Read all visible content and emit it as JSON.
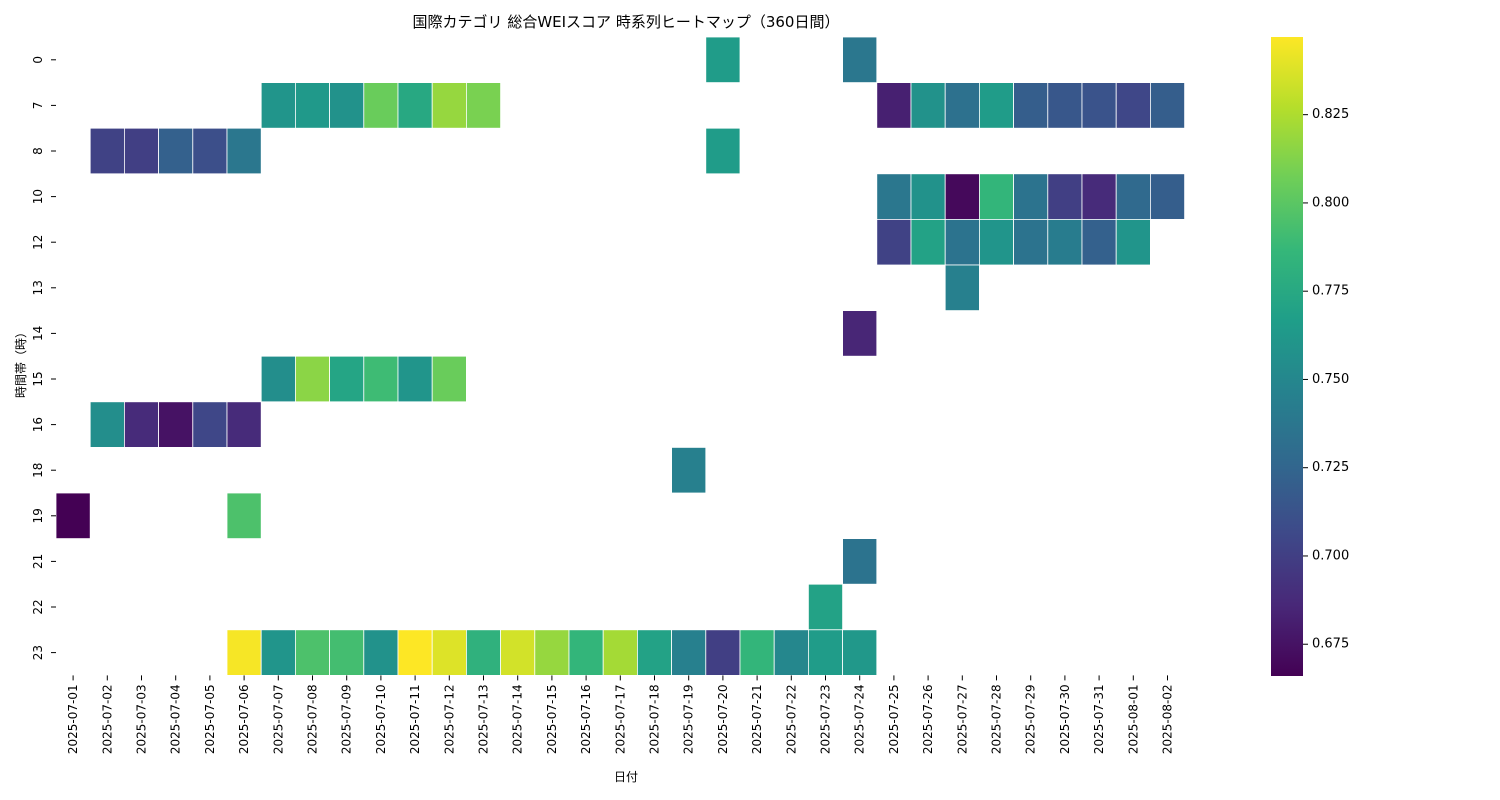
{
  "chart_data": {
    "type": "heatmap",
    "title": "国際カテゴリ 総合WEIスコア 時系列ヒートマップ（360日間）",
    "xlabel": "日付",
    "ylabel": "時間帯（時）",
    "x": [
      "2025-07-01",
      "2025-07-02",
      "2025-07-03",
      "2025-07-04",
      "2025-07-05",
      "2025-07-06",
      "2025-07-07",
      "2025-07-08",
      "2025-07-09",
      "2025-07-10",
      "2025-07-11",
      "2025-07-12",
      "2025-07-13",
      "2025-07-14",
      "2025-07-15",
      "2025-07-16",
      "2025-07-17",
      "2025-07-18",
      "2025-07-19",
      "2025-07-20",
      "2025-07-21",
      "2025-07-22",
      "2025-07-23",
      "2025-07-24",
      "2025-07-25",
      "2025-07-26",
      "2025-07-27",
      "2025-07-28",
      "2025-07-29",
      "2025-07-30",
      "2025-07-31",
      "2025-08-01",
      "2025-08-02"
    ],
    "y": [
      "0",
      "7",
      "8",
      "10",
      "12",
      "13",
      "14",
      "15",
      "16",
      "18",
      "19",
      "21",
      "22",
      "23"
    ],
    "colormap": "viridis",
    "vmin": 0.666,
    "vmax": 0.847,
    "colorbar_ticks": [
      0.675,
      0.7,
      0.725,
      0.75,
      0.775,
      0.8,
      0.825
    ],
    "colorbar_tick_labels": [
      "0.675",
      "0.700",
      "0.725",
      "0.750",
      "0.775",
      "0.800",
      "0.825"
    ],
    "cells": [
      {
        "x": "2025-07-20",
        "y": "0",
        "value": 0.765
      },
      {
        "x": "2025-07-24",
        "y": "0",
        "value": 0.738
      },
      {
        "x": "2025-07-07",
        "y": "7",
        "value": 0.76
      },
      {
        "x": "2025-07-08",
        "y": "7",
        "value": 0.763
      },
      {
        "x": "2025-07-09",
        "y": "7",
        "value": 0.758
      },
      {
        "x": "2025-07-10",
        "y": "7",
        "value": 0.805
      },
      {
        "x": "2025-07-11",
        "y": "7",
        "value": 0.775
      },
      {
        "x": "2025-07-12",
        "y": "7",
        "value": 0.818
      },
      {
        "x": "2025-07-13",
        "y": "7",
        "value": 0.81
      },
      {
        "x": "2025-07-25",
        "y": "7",
        "value": 0.682
      },
      {
        "x": "2025-07-26",
        "y": "7",
        "value": 0.758
      },
      {
        "x": "2025-07-27",
        "y": "7",
        "value": 0.733
      },
      {
        "x": "2025-07-28",
        "y": "7",
        "value": 0.765
      },
      {
        "x": "2025-07-29",
        "y": "7",
        "value": 0.72
      },
      {
        "x": "2025-07-30",
        "y": "7",
        "value": 0.715
      },
      {
        "x": "2025-07-31",
        "y": "7",
        "value": 0.713
      },
      {
        "x": "2025-08-01",
        "y": "7",
        "value": 0.705
      },
      {
        "x": "2025-08-02",
        "y": "7",
        "value": 0.72
      },
      {
        "x": "2025-07-02",
        "y": "8",
        "value": 0.702
      },
      {
        "x": "2025-07-03",
        "y": "8",
        "value": 0.7
      },
      {
        "x": "2025-07-04",
        "y": "8",
        "value": 0.722
      },
      {
        "x": "2025-07-05",
        "y": "8",
        "value": 0.71
      },
      {
        "x": "2025-07-06",
        "y": "8",
        "value": 0.738
      },
      {
        "x": "2025-07-20",
        "y": "8",
        "value": 0.765
      },
      {
        "x": "2025-07-25",
        "y": "10",
        "value": 0.738
      },
      {
        "x": "2025-07-26",
        "y": "10",
        "value": 0.758
      },
      {
        "x": "2025-07-27",
        "y": "10",
        "value": 0.67
      },
      {
        "x": "2025-07-28",
        "y": "10",
        "value": 0.785
      },
      {
        "x": "2025-07-29",
        "y": "10",
        "value": 0.735
      },
      {
        "x": "2025-07-30",
        "y": "10",
        "value": 0.7
      },
      {
        "x": "2025-07-31",
        "y": "10",
        "value": 0.688
      },
      {
        "x": "2025-08-01",
        "y": "10",
        "value": 0.728
      },
      {
        "x": "2025-08-02",
        "y": "10",
        "value": 0.72
      },
      {
        "x": "2025-07-25",
        "y": "12",
        "value": 0.702
      },
      {
        "x": "2025-07-26",
        "y": "12",
        "value": 0.77
      },
      {
        "x": "2025-07-27",
        "y": "12",
        "value": 0.735
      },
      {
        "x": "2025-07-28",
        "y": "12",
        "value": 0.76
      },
      {
        "x": "2025-07-29",
        "y": "12",
        "value": 0.735
      },
      {
        "x": "2025-07-30",
        "y": "12",
        "value": 0.742
      },
      {
        "x": "2025-07-31",
        "y": "12",
        "value": 0.722
      },
      {
        "x": "2025-08-01",
        "y": "12",
        "value": 0.76
      },
      {
        "x": "2025-07-27",
        "y": "13",
        "value": 0.745
      },
      {
        "x": "2025-07-24",
        "y": "14",
        "value": 0.685
      },
      {
        "x": "2025-07-07",
        "y": "15",
        "value": 0.755
      },
      {
        "x": "2025-07-08",
        "y": "15",
        "value": 0.815
      },
      {
        "x": "2025-07-09",
        "y": "15",
        "value": 0.772
      },
      {
        "x": "2025-07-10",
        "y": "15",
        "value": 0.79
      },
      {
        "x": "2025-07-11",
        "y": "15",
        "value": 0.76
      },
      {
        "x": "2025-07-12",
        "y": "15",
        "value": 0.805
      },
      {
        "x": "2025-07-02",
        "y": "16",
        "value": 0.755
      },
      {
        "x": "2025-07-03",
        "y": "16",
        "value": 0.688
      },
      {
        "x": "2025-07-04",
        "y": "16",
        "value": 0.675
      },
      {
        "x": "2025-07-05",
        "y": "16",
        "value": 0.705
      },
      {
        "x": "2025-07-06",
        "y": "16",
        "value": 0.688
      },
      {
        "x": "2025-07-19",
        "y": "18",
        "value": 0.745
      },
      {
        "x": "2025-07-01",
        "y": "19",
        "value": 0.666
      },
      {
        "x": "2025-07-06",
        "y": "19",
        "value": 0.795
      },
      {
        "x": "2025-07-24",
        "y": "21",
        "value": 0.735
      },
      {
        "x": "2025-07-23",
        "y": "22",
        "value": 0.77
      },
      {
        "x": "2025-07-06",
        "y": "23",
        "value": 0.845
      },
      {
        "x": "2025-07-07",
        "y": "23",
        "value": 0.76
      },
      {
        "x": "2025-07-08",
        "y": "23",
        "value": 0.795
      },
      {
        "x": "2025-07-09",
        "y": "23",
        "value": 0.792
      },
      {
        "x": "2025-07-10",
        "y": "23",
        "value": 0.758
      },
      {
        "x": "2025-07-11",
        "y": "23",
        "value": 0.847
      },
      {
        "x": "2025-07-12",
        "y": "23",
        "value": 0.838
      },
      {
        "x": "2025-07-13",
        "y": "23",
        "value": 0.782
      },
      {
        "x": "2025-07-14",
        "y": "23",
        "value": 0.835
      },
      {
        "x": "2025-07-15",
        "y": "23",
        "value": 0.818
      },
      {
        "x": "2025-07-16",
        "y": "23",
        "value": 0.785
      },
      {
        "x": "2025-07-17",
        "y": "23",
        "value": 0.822
      },
      {
        "x": "2025-07-18",
        "y": "23",
        "value": 0.77
      },
      {
        "x": "2025-07-19",
        "y": "23",
        "value": 0.745
      },
      {
        "x": "2025-07-20",
        "y": "23",
        "value": 0.7
      },
      {
        "x": "2025-07-21",
        "y": "23",
        "value": 0.785
      },
      {
        "x": "2025-07-22",
        "y": "23",
        "value": 0.75
      },
      {
        "x": "2025-07-23",
        "y": "23",
        "value": 0.765
      },
      {
        "x": "2025-07-24",
        "y": "23",
        "value": 0.762
      }
    ]
  }
}
